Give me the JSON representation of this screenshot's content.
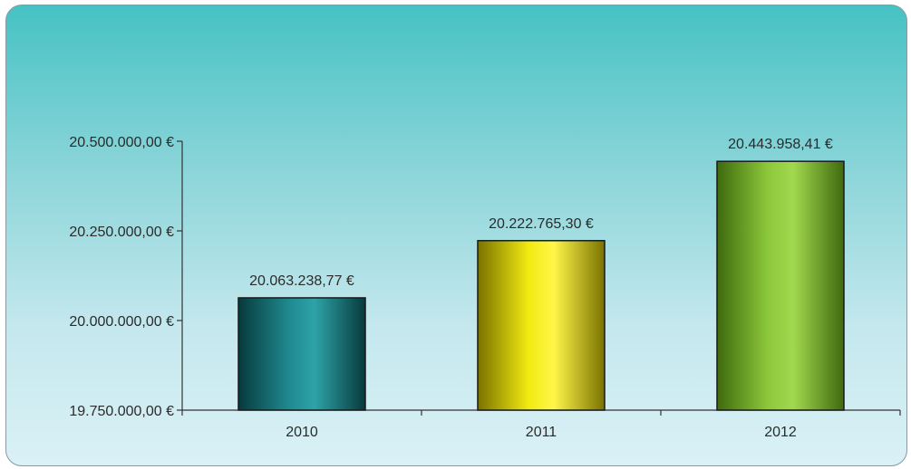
{
  "chart_data": {
    "type": "bar",
    "categories": [
      "2010",
      "2011",
      "2012"
    ],
    "values": [
      20063238.77,
      20222765.3,
      20443958.41
    ],
    "value_labels": [
      "20.063.238,77 €",
      "20.222.765,30 €",
      "20.443.958,41 €"
    ],
    "title": "",
    "xlabel": "",
    "ylabel": "",
    "ylim": [
      19750000,
      20500000
    ],
    "y_ticks": [
      19750000,
      20000000,
      20250000,
      20500000
    ],
    "y_tick_labels": [
      "19.750.000,00 €",
      "20.000.000,00 €",
      "20.250.000,00 €",
      "20.500.000,00 €"
    ],
    "grid": false,
    "legend": "none",
    "bar_colors": [
      {
        "dark": "#073a3c",
        "mid": "#1f8a90",
        "light": "#2da3a8"
      },
      {
        "dark": "#7a7200",
        "mid": "#f2ea10",
        "light": "#fff64a"
      },
      {
        "dark": "#3f6a0e",
        "mid": "#8cc83a",
        "light": "#a2d84e"
      }
    ],
    "axis_color": "#333333",
    "background": [
      "#46c2c4",
      "#daf1f6"
    ]
  }
}
